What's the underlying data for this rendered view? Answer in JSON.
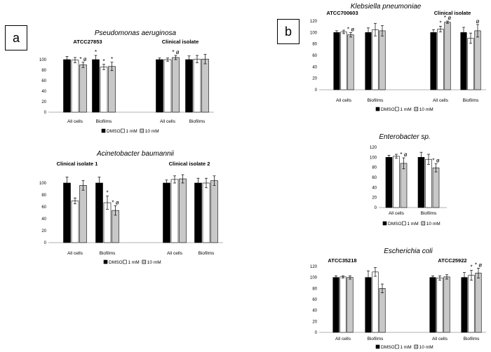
{
  "panels": [
    {
      "label": "a"
    },
    {
      "label": "b"
    }
  ],
  "colors": {
    "DMSO": "#000000",
    "1 mM": "#ffffff",
    "10 mM": "#c8c8c8"
  },
  "chart_data": [
    {
      "type": "bar",
      "title": "Pseudomonas aeruginosa",
      "subtitles": [
        "ATCC27853",
        "Clinical isolate"
      ],
      "categories": [
        "All cells",
        "Biofilms",
        "All cells",
        "Biofilms"
      ],
      "legend": [
        "DMSO",
        "1 mM",
        "10 mM"
      ],
      "ylim": [
        0,
        120
      ],
      "yticks": [
        0,
        20,
        40,
        60,
        80,
        100
      ],
      "series": [
        {
          "name": "DMSO",
          "values": [
            100,
            100,
            100,
            100
          ]
        },
        {
          "name": "1 mM",
          "values": [
            99,
            86,
            100,
            101
          ]
        },
        {
          "name": "10 mM",
          "values": [
            90,
            87,
            104,
            101
          ]
        }
      ],
      "errors": [
        [
          6,
          8,
          3,
          7
        ],
        [
          5,
          5,
          3,
          7
        ],
        [
          5,
          8,
          4,
          9
        ]
      ],
      "markers": [
        [
          "",
          "*",
          "",
          ""
        ],
        [
          "",
          "*",
          "",
          ""
        ],
        [
          "* ø",
          "*",
          "* ø",
          ""
        ]
      ]
    },
    {
      "type": "bar",
      "title": "Acinetobacter baumannii",
      "subtitles": [
        "Clinical isolate 1",
        "Clinical isolate 2"
      ],
      "categories": [
        "All cells",
        "Biofilms",
        "All cells",
        "Biofilms"
      ],
      "legend": [
        "DMSO",
        "1 mM",
        "10 mM"
      ],
      "ylim": [
        0,
        120
      ],
      "yticks": [
        0,
        20,
        40,
        60,
        80,
        100
      ],
      "series": [
        {
          "name": "DMSO",
          "values": [
            100,
            100,
            100,
            100
          ]
        },
        {
          "name": "1 mM",
          "values": [
            70,
            67,
            106,
            100
          ]
        },
        {
          "name": "10 mM",
          "values": [
            96,
            54,
            107,
            104
          ]
        }
      ],
      "errors": [
        [
          10,
          10,
          5,
          8
        ],
        [
          5,
          11,
          6,
          8
        ],
        [
          8,
          8,
          7,
          8
        ]
      ],
      "markers": [
        [
          "",
          "",
          "",
          ""
        ],
        [
          "",
          "*",
          "",
          ""
        ],
        [
          "",
          "* ø",
          "",
          ""
        ]
      ]
    },
    {
      "type": "bar",
      "title": "Klebsiella pneumoniae",
      "subtitles": [
        "ATCC700603",
        "Clinical isolate"
      ],
      "categories": [
        "All cells",
        "Biofilms",
        "All cells",
        "Biofilms"
      ],
      "legend": [
        "DMSO",
        "1 mM",
        "10 mM"
      ],
      "ylim": [
        0,
        120
      ],
      "yticks": [
        0,
        20,
        40,
        60,
        80,
        100,
        120
      ],
      "series": [
        {
          "name": "DMSO",
          "values": [
            100,
            100,
            100,
            100
          ]
        },
        {
          "name": "1 mM",
          "values": [
            101,
            105,
            106,
            90
          ]
        },
        {
          "name": "10 mM",
          "values": [
            96,
            103,
            118,
            103
          ]
        }
      ],
      "errors": [
        [
          3,
          8,
          5,
          9
        ],
        [
          3,
          11,
          5,
          9
        ],
        [
          4,
          9,
          2,
          11
        ]
      ],
      "markers": [
        [
          "",
          "",
          "",
          ""
        ],
        [
          "",
          "",
          "*",
          ""
        ],
        [
          "* ø",
          "",
          "* ø",
          "ø"
        ]
      ]
    },
    {
      "type": "bar",
      "title": "Enterobacter sp.",
      "subtitles": [],
      "categories": [
        "All cells",
        "Biofilms"
      ],
      "legend": [
        "DMSO",
        "1 mM",
        "10 mM"
      ],
      "ylim": [
        0,
        120
      ],
      "yticks": [
        0,
        20,
        40,
        60,
        80,
        100,
        120
      ],
      "series": [
        {
          "name": "DMSO",
          "values": [
            100,
            100
          ]
        },
        {
          "name": "1 mM",
          "values": [
            102,
            96
          ]
        },
        {
          "name": "10 mM",
          "values": [
            88,
            79
          ]
        }
      ],
      "errors": [
        [
          4,
          10
        ],
        [
          4,
          10
        ],
        [
          11,
          8
        ]
      ],
      "markers": [
        [
          "",
          ""
        ],
        [
          "",
          ""
        ],
        [
          "* ø",
          "* ø"
        ]
      ]
    },
    {
      "type": "bar",
      "title": "Escherichia coli",
      "subtitles": [
        "ATCC35218",
        "ATCC25922"
      ],
      "categories": [
        "All cells",
        "Biofilms",
        "All cells",
        "Biofilms"
      ],
      "legend": [
        "DMSO",
        "1 mM",
        "10 mM"
      ],
      "ylim": [
        0,
        120
      ],
      "yticks": [
        0,
        20,
        40,
        60,
        80,
        100,
        120
      ],
      "series": [
        {
          "name": "DMSO",
          "values": [
            100,
            100,
            100,
            100
          ]
        },
        {
          "name": "1 mM",
          "values": [
            101,
            110,
            99,
            104
          ]
        },
        {
          "name": "10 mM",
          "values": [
            100,
            80,
            101,
            108
          ]
        }
      ],
      "errors": [
        [
          3,
          12,
          3,
          9
        ],
        [
          2,
          8,
          4,
          9
        ],
        [
          3,
          8,
          4,
          9
        ]
      ],
      "markers": [
        [
          "",
          "",
          "",
          ""
        ],
        [
          "",
          "",
          "",
          "*"
        ],
        [
          "",
          "",
          "",
          "* ø"
        ]
      ]
    }
  ]
}
